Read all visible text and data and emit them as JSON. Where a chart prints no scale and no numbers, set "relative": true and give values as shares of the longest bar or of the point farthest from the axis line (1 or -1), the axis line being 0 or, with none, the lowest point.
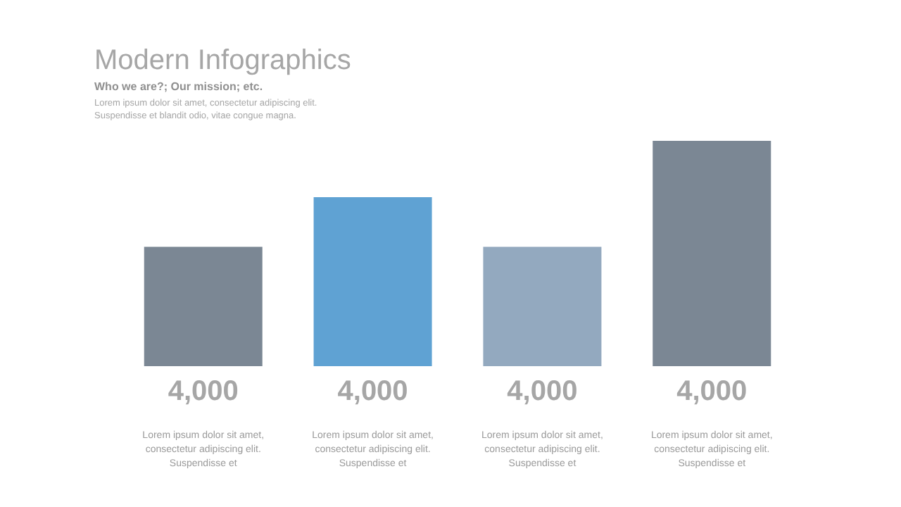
{
  "chart_data": {
    "type": "bar",
    "title": "Modern Infographics",
    "subtitle": "Who we are?; Our mission; etc.",
    "annotations": [
      "Lorem ipsum dolor sit amet, consectetur adipiscing elit.",
      "Suspendisse et blandit odio, vitae congue magna.",
      "4,000",
      "4,000",
      "4,000",
      "4,000"
    ],
    "categories": [
      "Lorem ipsum dolor sit amet, consectetur adipiscing elit. Suspendisse et",
      "Lorem ipsum dolor sit amet, consectetur adipiscing elit. Suspendisse et",
      "Lorem ipsum dolor sit amet, consectetur adipiscing elit. Suspendisse et",
      "Lorem ipsum dolor sit amet, consectetur adipiscing elit. Suspendisse et"
    ],
    "relative": true,
    "values": [
      0.53,
      0.75,
      0.53,
      1
    ],
    "colors": [
      "#7b8794",
      "#5fa2d3",
      "#93a9bf",
      "#7b8794"
    ],
    "grid": false
  }
}
